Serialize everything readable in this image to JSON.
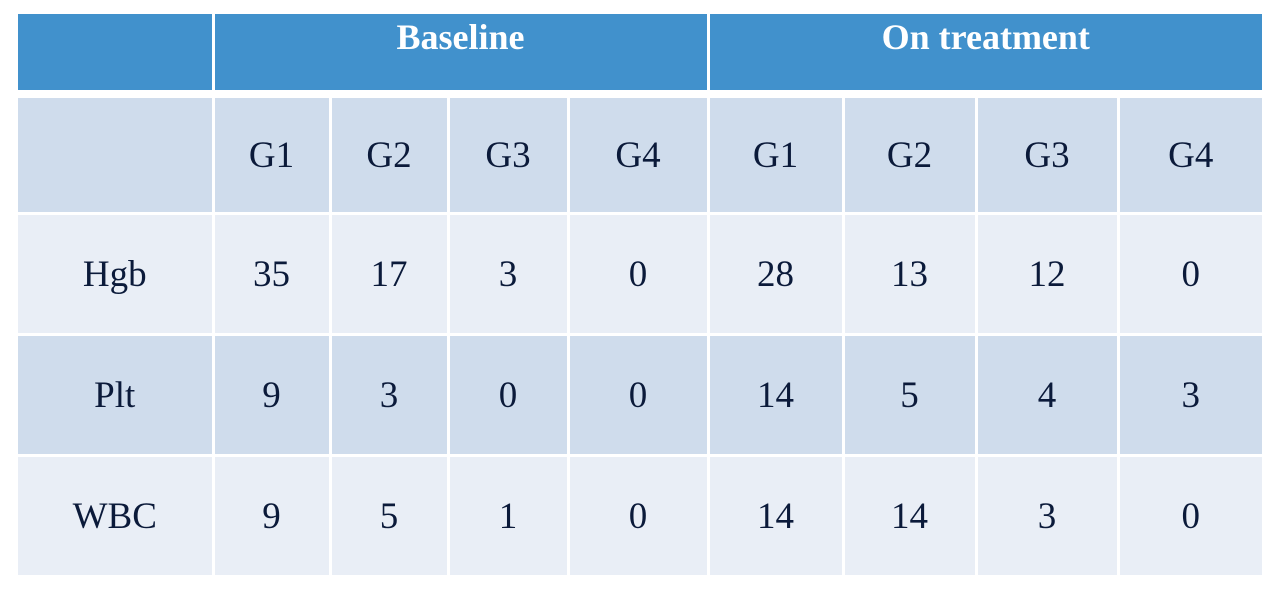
{
  "table": {
    "group_headers": [
      "",
      "Baseline",
      "On treatment"
    ],
    "sub_headers": [
      "",
      "G1",
      "G2",
      "G3",
      "G4",
      "G1",
      "G2",
      "G3",
      "G4"
    ],
    "rows": [
      {
        "label": "Hgb",
        "cells": [
          "35",
          "17",
          "3",
          "0",
          "28",
          "13",
          "12",
          "0"
        ]
      },
      {
        "label": "Plt",
        "cells": [
          "9",
          "3",
          "0",
          "0",
          "14",
          "5",
          "4",
          "3"
        ]
      },
      {
        "label": "WBC",
        "cells": [
          "9",
          "5",
          "1",
          "0",
          "14",
          "14",
          "3",
          "0"
        ]
      }
    ]
  },
  "colors": {
    "header_bg": "#4191cc",
    "band_dark": "#cfdcec",
    "band_light": "#e9eef6",
    "text": "#0b1a3a"
  }
}
